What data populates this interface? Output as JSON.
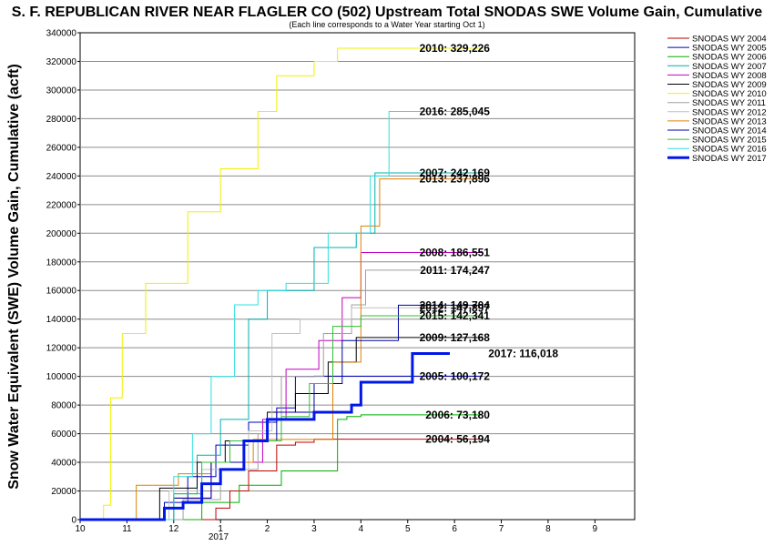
{
  "chart_data": {
    "type": "line",
    "title": "S. F. REPUBLICAN RIVER NEAR FLAGLER CO (502) Upstream Total SNODAS SWE Volume Gain, Cumulative",
    "subtitle": "(Each line corresponds to a Water Year starting Oct 1)",
    "ylabel": "Snow Water Equivalent (SWE) Volume Gain, Cumulative (acft)",
    "xlabel": "",
    "x_year_label": "2017",
    "ylim": [
      0,
      340000
    ],
    "y_ticks": [
      "0",
      "20000",
      "40000",
      "60000",
      "80000",
      "100000",
      "120000",
      "140000",
      "160000",
      "180000",
      "200000",
      "220000",
      "240000",
      "260000",
      "280000",
      "300000",
      "320000",
      "340000"
    ],
    "x_ticks": [
      "10",
      "11",
      "12",
      "1",
      "2",
      "3",
      "4",
      "5",
      "6",
      "7",
      "8",
      "9"
    ],
    "xlim_months_since_oct1": [
      0,
      11.85
    ],
    "grid": "horizontal",
    "legend_position": "right",
    "series": [
      {
        "name": "SNODAS WY 2004",
        "color": "#c00000",
        "label": "2004: 56,194",
        "x": [
          0,
          2.9,
          3.2,
          3.6,
          4.2,
          4.6,
          5.0,
          8.6
        ],
        "y": [
          0,
          8000,
          20000,
          34000,
          52000,
          54000,
          56194,
          56194
        ]
      },
      {
        "name": "SNODAS WY 2005",
        "color": "#0000c0",
        "label": "2005: 100,172",
        "x": [
          0,
          1.8,
          2.3,
          2.9,
          3.6,
          4.2,
          4.6,
          5.0,
          8.6
        ],
        "y": [
          0,
          12000,
          30000,
          52000,
          68000,
          78000,
          100000,
          100172,
          100172
        ]
      },
      {
        "name": "SNODAS WY 2006",
        "color": "#00b000",
        "label": "2006: 73,180",
        "x": [
          0,
          2.6,
          3.4,
          4.3,
          5.5,
          5.7,
          6.0,
          8.6
        ],
        "y": [
          0,
          12000,
          24000,
          34000,
          70000,
          72000,
          73180,
          73180
        ]
      },
      {
        "name": "SNODAS WY 2007",
        "color": "#00b0b0",
        "label": "2007: 242,169",
        "x": [
          0,
          2.0,
          2.5,
          3.0,
          3.6,
          4.0,
          5.0,
          5.9,
          6.3,
          8.6
        ],
        "y": [
          0,
          18000,
          45000,
          70000,
          140000,
          160000,
          190000,
          200000,
          242169,
          242169
        ]
      },
      {
        "name": "SNODAS WY 2008",
        "color": "#c000c0",
        "label": "2008: 186,551",
        "x": [
          0,
          2.0,
          2.8,
          3.9,
          4.4,
          5.1,
          5.6,
          6.0,
          8.6
        ],
        "y": [
          0,
          15000,
          40000,
          70000,
          105000,
          125000,
          155000,
          186551,
          186551
        ]
      },
      {
        "name": "SNODAS WY 2009",
        "color": "#000000",
        "label": "2009: 127,168",
        "x": [
          0,
          1.7,
          2.5,
          3.1,
          4.0,
          4.6,
          5.3,
          5.9,
          8.6
        ],
        "y": [
          0,
          22000,
          40000,
          55000,
          75000,
          88000,
          110000,
          127168,
          127168
        ]
      },
      {
        "name": "SNODAS WY 2010",
        "color": "#f0f000",
        "label": "2010: 329,226",
        "x": [
          0,
          0.5,
          0.65,
          0.9,
          1.4,
          2.3,
          3.0,
          3.8,
          4.2,
          5.0,
          5.5,
          8.6
        ],
        "y": [
          0,
          10000,
          85000,
          130000,
          165000,
          215000,
          245000,
          285000,
          310000,
          320000,
          329226,
          329226
        ]
      },
      {
        "name": "SNODAS WY 2011",
        "color": "#a0a0a0",
        "label": "2011: 174,247",
        "x": [
          0,
          2.2,
          3.0,
          3.8,
          4.3,
          5.2,
          5.8,
          6.1,
          8.6
        ],
        "y": [
          0,
          14000,
          35000,
          60000,
          100000,
          130000,
          150000,
          174247,
          174247
        ]
      },
      {
        "name": "SNODAS WY 2012",
        "color": "#c0c0c0",
        "label": "2012: 147,897",
        "x": [
          0,
          1.9,
          2.6,
          3.6,
          4.1,
          4.7,
          5.8,
          8.6
        ],
        "y": [
          0,
          20000,
          35000,
          62000,
          130000,
          140000,
          147897,
          147897
        ]
      },
      {
        "name": "SNODAS WY 2013",
        "color": "#e08000",
        "label": "2013: 237,896",
        "x": [
          0,
          1.2,
          2.1,
          2.8,
          3.7,
          5.4,
          6.0,
          6.4,
          8.6
        ],
        "y": [
          0,
          24000,
          32000,
          40000,
          56000,
          110000,
          205000,
          237896,
          237896
        ]
      },
      {
        "name": "SNODAS WY 2014",
        "color": "#0000a0",
        "label": "2014: 149,704",
        "x": [
          0,
          2.0,
          2.8,
          3.5,
          4.2,
          5.0,
          5.6,
          6.8,
          8.6
        ],
        "y": [
          0,
          15000,
          40000,
          55000,
          75000,
          95000,
          125000,
          149704,
          149704
        ]
      },
      {
        "name": "SNODAS WY 2015",
        "color": "#30c030",
        "label": "2015: 142,341",
        "x": [
          0,
          2.0,
          2.6,
          3.2,
          4.3,
          4.9,
          5.4,
          6.0,
          8.6
        ],
        "y": [
          0,
          18000,
          40000,
          55000,
          72000,
          95000,
          135000,
          142341,
          142341
        ]
      },
      {
        "name": "SNODAS WY 2016",
        "color": "#30e0e0",
        "label": "2016: 285,045",
        "x": [
          0,
          2.0,
          2.4,
          2.8,
          3.3,
          3.8,
          4.4,
          5.3,
          6.2,
          6.6,
          8.6
        ],
        "y": [
          0,
          30000,
          60000,
          100000,
          150000,
          160000,
          165000,
          200000,
          240000,
          285045,
          285045
        ]
      },
      {
        "name": "SNODAS WY 2017",
        "color": "#0018e8",
        "label": "2017: 116,018",
        "x": [
          0,
          1.5,
          1.8,
          2.2,
          2.6,
          3.0,
          3.5,
          4.0,
          5.0,
          5.8,
          6.0,
          6.8,
          7.1,
          7.9
        ],
        "y": [
          0,
          0,
          8000,
          12000,
          25000,
          35000,
          55000,
          70000,
          75000,
          80000,
          96000,
          96000,
          116018,
          116018
        ]
      }
    ]
  }
}
